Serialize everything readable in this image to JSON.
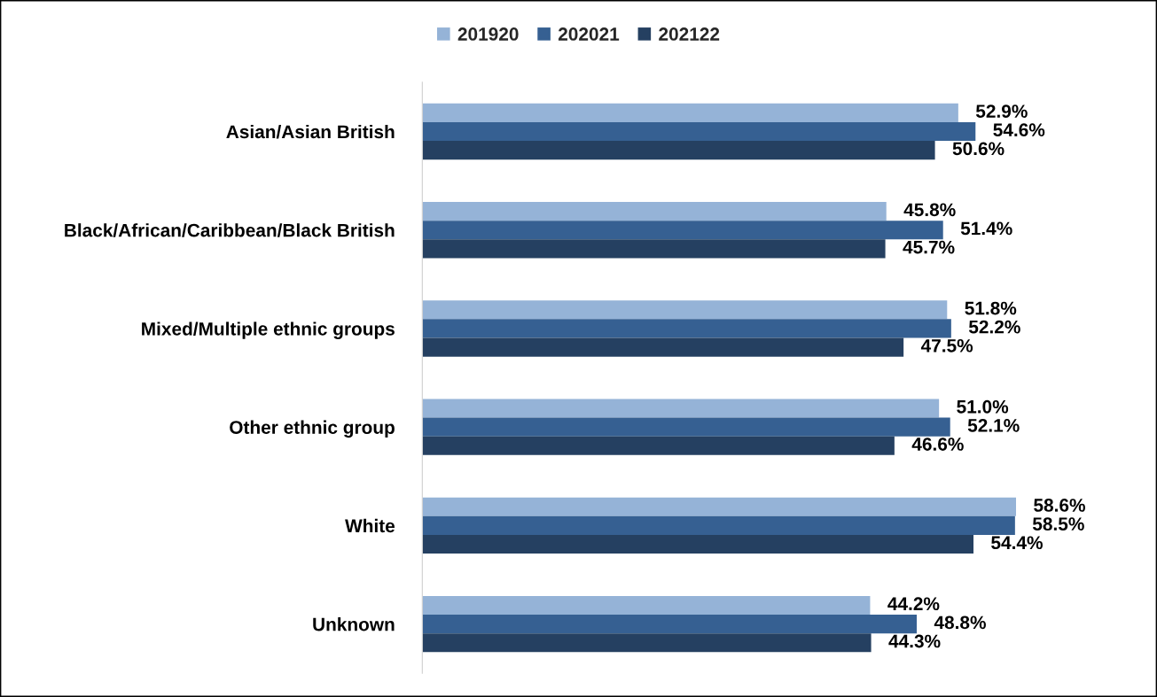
{
  "chart_data": {
    "type": "bar",
    "orientation": "horizontal",
    "categories": [
      "Asian/Asian British",
      "Black/African/Caribbean/Black British",
      "Mixed/Multiple ethnic groups",
      "Other ethnic group",
      "White",
      "Unknown"
    ],
    "series": [
      {
        "name": "201920",
        "color": "#95b3d7",
        "values": [
          52.9,
          45.8,
          51.8,
          51.0,
          58.6,
          44.2
        ],
        "value_labels": [
          "52.9%",
          "45.8%",
          "51.8%",
          "51.0%",
          "58.6%",
          "44.2%"
        ]
      },
      {
        "name": "202021",
        "color": "#366092",
        "values": [
          54.6,
          51.4,
          52.2,
          52.1,
          58.5,
          48.8
        ],
        "value_labels": [
          "54.6%",
          "51.4%",
          "52.2%",
          "52.1%",
          "58.5%",
          "48.8%"
        ]
      },
      {
        "name": "202122",
        "color": "#254061",
        "values": [
          50.6,
          45.7,
          47.5,
          46.6,
          54.4,
          44.3
        ],
        "value_labels": [
          "50.6%",
          "45.7%",
          "47.5%",
          "46.6%",
          "54.4%",
          "44.3%"
        ]
      }
    ],
    "relative": false,
    "grid": false,
    "legend": "top"
  }
}
